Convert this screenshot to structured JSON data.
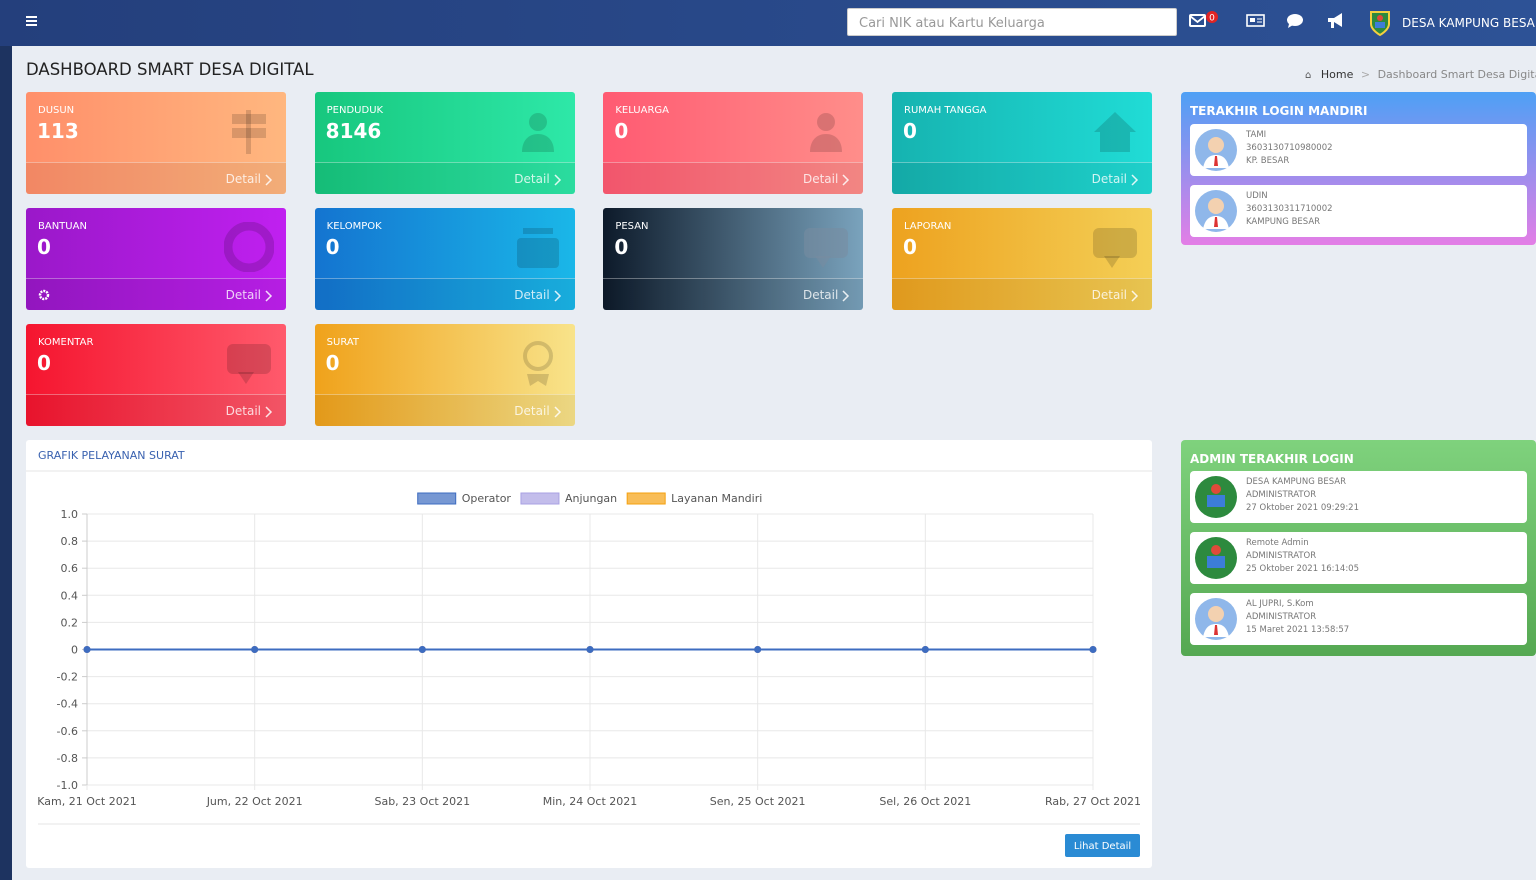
{
  "header": {
    "search_placeholder": "Cari NIK atau Kartu Keluarga",
    "mail_badge": 0,
    "village": "DESA KAMPUNG BESAR"
  },
  "page": {
    "title": "DASHBOARD SMART DESA DIGITAL",
    "breadcrumb": [
      "Home",
      "Dashboard Smart Desa Digital"
    ]
  },
  "cards": [
    {
      "label": "DUSUN",
      "value": 113,
      "link": "Detail"
    },
    {
      "label": "PENDUDUK",
      "value": 8146,
      "link": "Detail"
    },
    {
      "label": "KELUARGA",
      "value": 0,
      "link": "Detail"
    },
    {
      "label": "RUMAH TANGGA",
      "value": 0,
      "link": "Detail"
    },
    {
      "label": "BANTUAN",
      "value": 0,
      "link": "Detail"
    },
    {
      "label": "KELOMPOK",
      "value": 0,
      "link": "Detail"
    },
    {
      "label": "PESAN",
      "value": 0,
      "link": "Detail"
    },
    {
      "label": "LAPORAN",
      "value": 0,
      "link": "Detail"
    },
    {
      "label": "KOMENTAR",
      "value": 0,
      "link": "Detail"
    },
    {
      "label": "SURAT",
      "value": 0,
      "link": "Detail"
    }
  ],
  "login_mandiri": {
    "title": "TERAKHIR LOGIN MANDIRI",
    "items": [
      {
        "name": "TAMI",
        "nik": "3603130710980002",
        "address": "KP. BESAR"
      },
      {
        "name": "UDIN",
        "nik": "3603130311710002",
        "address": "KAMPUNG BESAR"
      }
    ]
  },
  "admin_login": {
    "title": "ADMIN TERAKHIR LOGIN",
    "items": [
      {
        "name": "DESA KAMPUNG BESAR",
        "role": "ADMINISTRATOR",
        "time": "27 Oktober 2021 09:29:21"
      },
      {
        "name": "Remote Admin",
        "role": "ADMINISTRATOR",
        "time": "25 Oktober 2021 16:14:05"
      },
      {
        "name": "AL JUPRI, S.Kom",
        "role": "ADMINISTRATOR",
        "time": "15 Maret 2021 13:58:57"
      }
    ]
  },
  "chart_data": {
    "type": "line",
    "title": "GRAFIK PELAYANAN SURAT",
    "categories": [
      "Kam, 21 Oct 2021",
      "Jum, 22 Oct 2021",
      "Sab, 23 Oct 2021",
      "Min, 24 Oct 2021",
      "Sen, 25 Oct 2021",
      "Sel, 26 Oct 2021",
      "Rab, 27 Oct 2021"
    ],
    "series": [
      {
        "name": "Operator",
        "color": "#3d6cc0",
        "values": [
          0,
          0,
          0,
          0,
          0,
          0,
          0
        ]
      },
      {
        "name": "Anjungan",
        "color": "#a9a1e3",
        "values": [
          0,
          0,
          0,
          0,
          0,
          0,
          0
        ]
      },
      {
        "name": "Layanan Mandiri",
        "color": "#f5a10f",
        "values": [
          0,
          0,
          0,
          0,
          0,
          0,
          0
        ]
      }
    ],
    "ylim": [
      -1,
      1
    ],
    "yticks": [
      {
        "value": 1,
        "label": "1.0"
      },
      0.8,
      0.6,
      0.4,
      0.2,
      0,
      -0.2,
      -0.4,
      -0.6,
      -0.8,
      {
        "value": -1,
        "label": "-1.0"
      }
    ],
    "grid": true,
    "legend": "top",
    "button": "Lihat Detail"
  }
}
